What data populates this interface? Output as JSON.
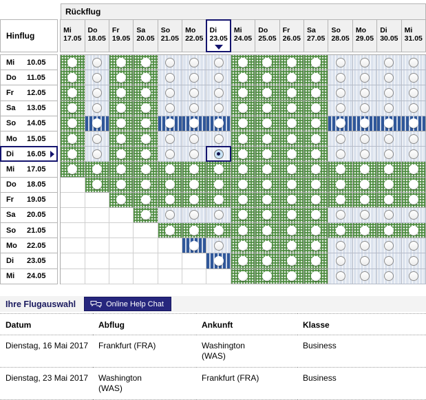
{
  "header": {
    "return_label": "Rückflug",
    "outbound_label": "Hinflug"
  },
  "matrix": {
    "columns": [
      {
        "day": "Mi",
        "date": "17.05"
      },
      {
        "day": "Do",
        "date": "18.05"
      },
      {
        "day": "Fr",
        "date": "19.05"
      },
      {
        "day": "Sa",
        "date": "20.05"
      },
      {
        "day": "So",
        "date": "21.05"
      },
      {
        "day": "Mo",
        "date": "22.05"
      },
      {
        "day": "Di",
        "date": "23.05",
        "selected": true
      },
      {
        "day": "Mi",
        "date": "24.05"
      },
      {
        "day": "Do",
        "date": "25.05"
      },
      {
        "day": "Fr",
        "date": "26.05"
      },
      {
        "day": "Sa",
        "date": "27.05"
      },
      {
        "day": "So",
        "date": "28.05"
      },
      {
        "day": "Mo",
        "date": "29.05"
      },
      {
        "day": "Di",
        "date": "30.05"
      },
      {
        "day": "Mi",
        "date": "31.05"
      }
    ],
    "rows": [
      {
        "day": "Mi",
        "date": "10.05",
        "cells": "GBGGBBBGGGGBBBB"
      },
      {
        "day": "Do",
        "date": "11.05",
        "cells": "GBGGBBBGGGGBBBB"
      },
      {
        "day": "Fr",
        "date": "12.05",
        "cells": "GBGGBBBGGGGBBBB"
      },
      {
        "day": "Sa",
        "date": "13.05",
        "cells": "GBGGBBBGGGGBBBB"
      },
      {
        "day": "So",
        "date": "14.05",
        "cells": "GSGGSSSGGGGSSSS"
      },
      {
        "day": "Mo",
        "date": "15.05",
        "cells": "GBGGBBBGGGGBBBB"
      },
      {
        "day": "Di",
        "date": "16.05",
        "selected": true,
        "cells": "GBGGBBXGGGGBBBB"
      },
      {
        "day": "Mi",
        "date": "17.05",
        "cells": "GGGGGGGGGGGGGGG"
      },
      {
        "day": "Do",
        "date": "18.05",
        "cells": "WGGGGGGGGGGGGGG"
      },
      {
        "day": "Fr",
        "date": "19.05",
        "cells": "WWGGGGGGGGGGGGG"
      },
      {
        "day": "Sa",
        "date": "20.05",
        "cells": "WWWGBBBGGGGBBBB"
      },
      {
        "day": "So",
        "date": "21.05",
        "cells": "WWWWGGGGGGGGGGG"
      },
      {
        "day": "Mo",
        "date": "22.05",
        "cells": "WWWWWSBGGGGBBBB"
      },
      {
        "day": "Di",
        "date": "23.05",
        "cells": "WWWWWWSGGGGBBBB"
      },
      {
        "day": "Mi",
        "date": "24.05",
        "cells": "WWWWWWWGGGGBBBB"
      }
    ],
    "cell_states": {
      "G": "available-green-dotted",
      "B": "available-lightblue",
      "S": "striped-blue",
      "W": "empty",
      "X": "selected-checked"
    }
  },
  "selection": {
    "title": "Ihre Flugauswahl",
    "chat_button": "Online Help Chat",
    "table": {
      "headers": [
        "Datum",
        "Abflug",
        "Ankunft",
        "Klasse"
      ],
      "rows": [
        {
          "datum": "Dienstag, 16 Mai 2017",
          "abflug": "Frankfurt (FRA)",
          "ankunft": "Washington (WAS)",
          "klasse": "Business"
        },
        {
          "datum": "Dienstag, 23 Mai 2017",
          "abflug": "Washington (WAS)",
          "ankunft": "Frankfurt (FRA)",
          "klasse": "Business"
        }
      ]
    }
  },
  "colors": {
    "accent_navy": "#14146e",
    "available_green": "#4e8c41",
    "available_lightblue": "#dce3ee",
    "stripe_blue": "#2f579a",
    "header_gray": "#f0f0f0",
    "button_navy": "#26267d"
  }
}
